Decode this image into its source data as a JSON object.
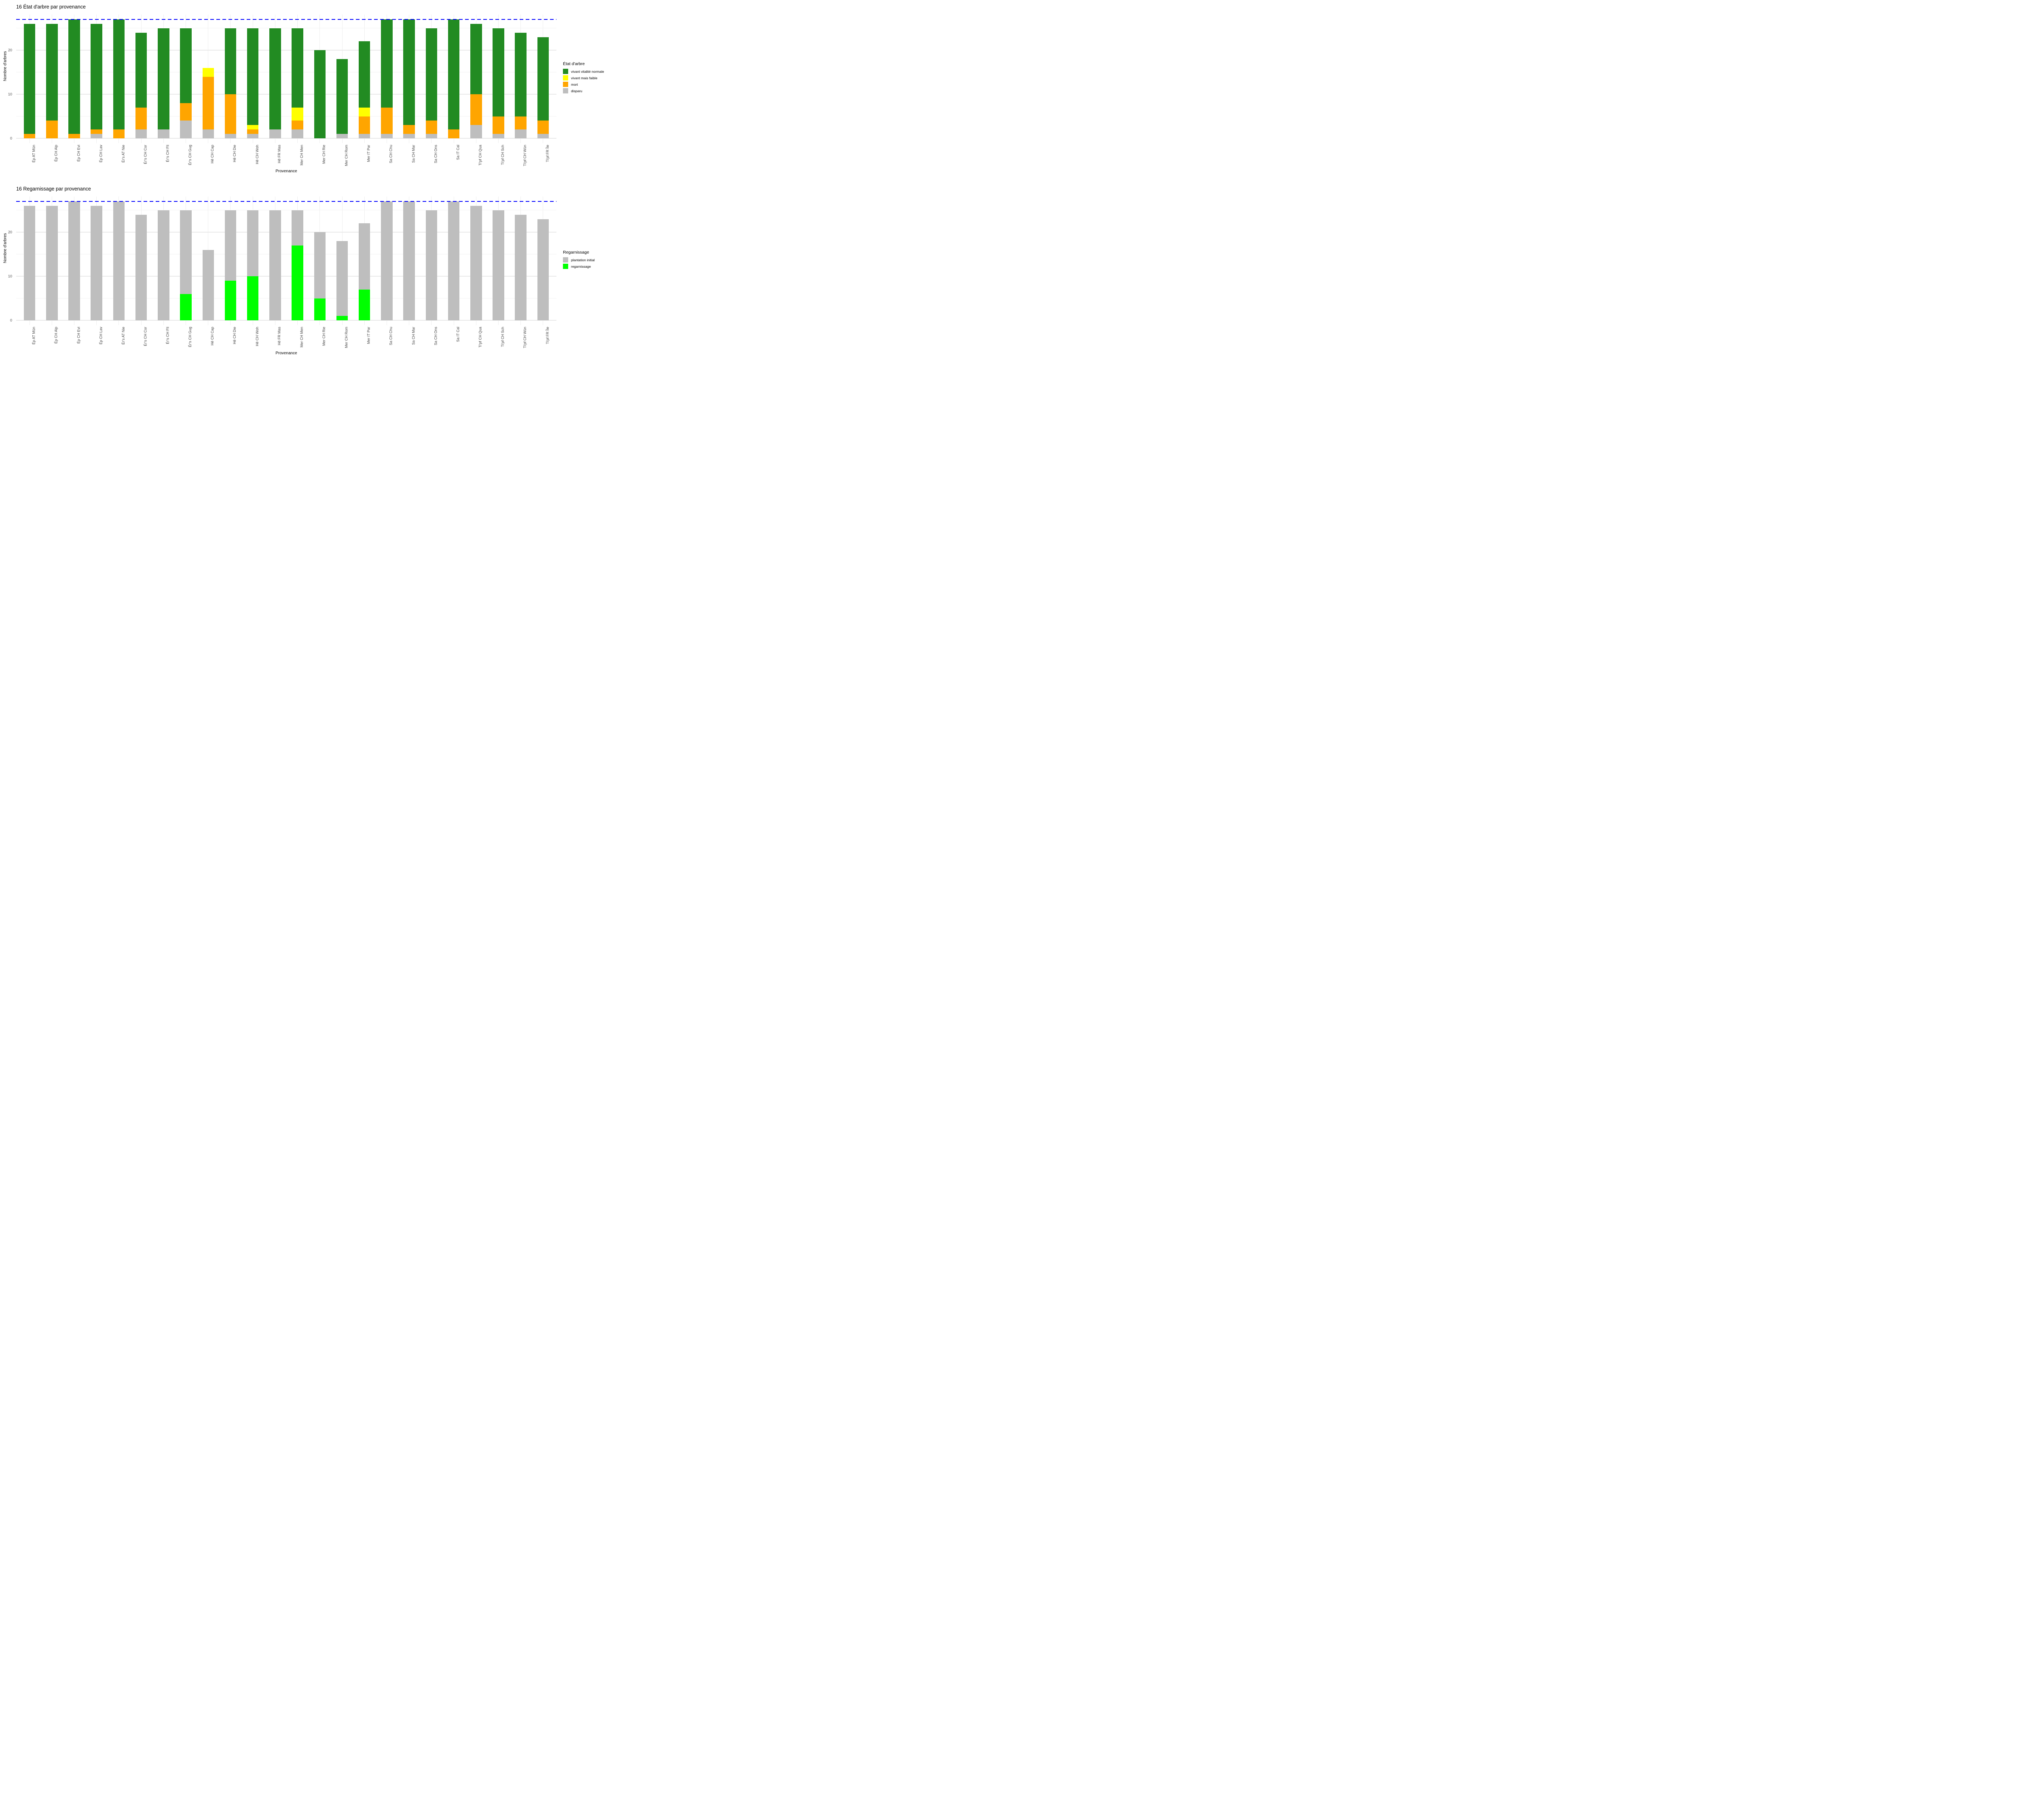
{
  "page": {
    "background": "#FFFFFF"
  },
  "chart_data": [
    {
      "type": "bar",
      "stacked": true,
      "title": "16 État d'arbre par provenance",
      "xlabel": "Provenance",
      "ylabel": "Nombre d'arbres",
      "ylim": [
        0,
        28.35
      ],
      "yticks": [
        0,
        10,
        20
      ],
      "minor_gridlines": [
        5,
        15,
        25
      ],
      "grid": "on",
      "legend_position": "right",
      "legend_title": "État d'arbre",
      "reference_line": {
        "value": 27,
        "color": "#0000FF",
        "style": "dashed"
      },
      "categories": [
        "Ép AT Mün",
        "Ép CH Alp",
        "Ép CH Evi",
        "Ép CH Lav",
        "Ér's AT Nie",
        "Ér's CH Cor",
        "Ér's CH Fli",
        "Ér's CH Gug",
        "Hê CH Cap",
        "Hê CH Die",
        "Hê CH Woh",
        "Hê FR Mas",
        "Mer CH Men",
        "Mer CH Rie",
        "Mer CH Rom",
        "Mer IT Par",
        "Sa CH Chu",
        "Sa CH Mar",
        "Sa CH Ons",
        "Sa IT Cal",
        "Ti'pf CH Qua",
        "Ti'pf CH Sch",
        "Ti'pf CH Wün",
        "Ti'pf FR Île"
      ],
      "series": [
        {
          "name": "vivant vitalité normale",
          "color": "#228B22",
          "values": [
            25,
            22,
            26,
            24,
            25,
            17,
            23,
            17,
            0,
            15,
            22,
            23,
            18,
            20,
            17,
            15,
            20,
            24,
            21,
            25,
            16,
            20,
            19,
            19
          ]
        },
        {
          "name": "vivant mais faible",
          "color": "#FFFF00",
          "values": [
            0,
            0,
            0,
            0,
            0,
            0,
            0,
            0,
            2,
            0,
            1,
            0,
            3,
            0,
            0,
            2,
            0,
            0,
            0,
            0,
            0,
            0,
            0,
            0
          ]
        },
        {
          "name": "mort",
          "color": "#FFA500",
          "values": [
            1,
            4,
            1,
            1,
            2,
            5,
            0,
            4,
            12,
            9,
            1,
            0,
            2,
            0,
            0,
            4,
            6,
            2,
            3,
            2,
            7,
            4,
            3,
            3
          ]
        },
        {
          "name": "disparu",
          "color": "#BEBEBE",
          "values": [
            0,
            0,
            0,
            1,
            0,
            2,
            2,
            4,
            2,
            1,
            1,
            2,
            2,
            0,
            1,
            1,
            1,
            1,
            1,
            0,
            3,
            1,
            2,
            1
          ]
        }
      ],
      "stack_order": "reverse-of-legend (disparu at bottom, vivant on top)"
    },
    {
      "type": "bar",
      "stacked": true,
      "title": "16 Regarnissage par provenance",
      "xlabel": "Provenance",
      "ylabel": "Nombre d'arbres",
      "ylim": [
        0,
        28.35
      ],
      "yticks": [
        0,
        10,
        20
      ],
      "minor_gridlines": [
        5,
        15,
        25
      ],
      "grid": "on",
      "legend_position": "right",
      "legend_title": "Regarnissage",
      "reference_line": {
        "value": 27,
        "color": "#0000FF",
        "style": "dashed"
      },
      "categories": [
        "Ép AT Mün",
        "Ép CH Alp",
        "Ép CH Evi",
        "Ép CH Lav",
        "Ér's AT Nie",
        "Ér's CH Cor",
        "Ér's CH Fli",
        "Ér's CH Gug",
        "Hê CH Cap",
        "Hê CH Die",
        "Hê CH Woh",
        "Hê FR Mas",
        "Mer CH Men",
        "Mer CH Rie",
        "Mer CH Rom",
        "Mer IT Par",
        "Sa CH Chu",
        "Sa CH Mar",
        "Sa CH Ons",
        "Sa IT Cal",
        "Ti'pf CH Qua",
        "Ti'pf CH Sch",
        "Ti'pf CH Wün",
        "Ti'pf FR Île"
      ],
      "series": [
        {
          "name": "plantation initial",
          "color": "#BEBEBE",
          "values": [
            26,
            26,
            27,
            26,
            27,
            24,
            25,
            19,
            16,
            16,
            15,
            25,
            8,
            15,
            17,
            15,
            27,
            27,
            25,
            27,
            26,
            25,
            24,
            23
          ]
        },
        {
          "name": "regarnissage",
          "color": "#00FF00",
          "values": [
            0,
            0,
            0,
            0,
            0,
            0,
            0,
            6,
            0,
            9,
            10,
            0,
            17,
            5,
            1,
            7,
            0,
            0,
            0,
            0,
            0,
            0,
            0,
            0
          ]
        }
      ],
      "stack_order": "reverse-of-legend (regarnissage at bottom, plantation initial on top)"
    }
  ]
}
